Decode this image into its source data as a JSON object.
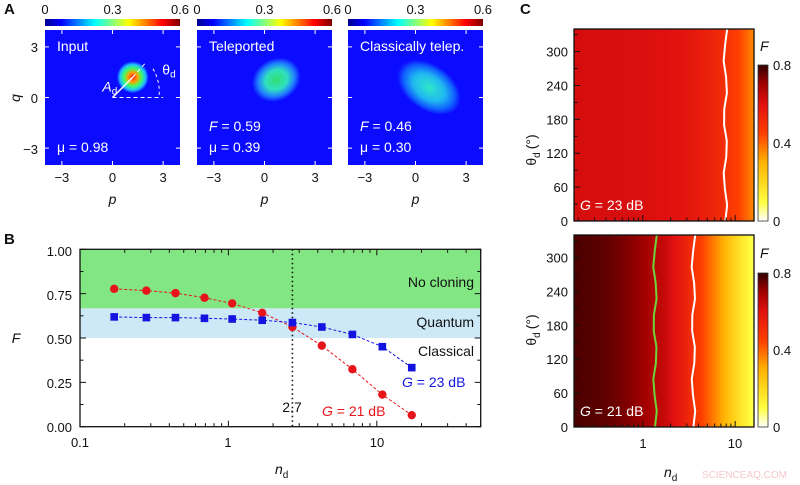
{
  "panel_labels": {
    "a": "A",
    "b": "B",
    "c": "C"
  },
  "watermark": "SCIENCEAQ.COM",
  "chart_data": [
    {
      "panel": "A",
      "type": "heatmap",
      "plots": [
        {
          "title": "Input",
          "annotations": {
            "mu": "μ = 0.98",
            "amplitude_base": "A",
            "amplitude_sub": "d",
            "angle_base": "θ",
            "angle_sub": "d"
          }
        },
        {
          "title": "Teleported",
          "annotations": {
            "fidelity_var": "F",
            "fidelity": "= 0.59",
            "mu": "μ = 0.39"
          }
        },
        {
          "title": "Classically telep.",
          "annotations": {
            "fidelity_var": "F",
            "fidelity": "= 0.46",
            "mu": "μ = 0.30"
          }
        }
      ],
      "colorbar": {
        "ticks": [
          "0",
          "0.3",
          "0.6"
        ],
        "range": [
          0,
          0.6
        ],
        "colormap": "jet"
      },
      "xlabel": "p",
      "ylabel": "q",
      "xticks": [
        "−3",
        "0",
        "3"
      ],
      "yticks": [
        "3",
        "0",
        "−3"
      ],
      "xlim": [
        -4,
        4
      ],
      "ylim": [
        -4,
        4
      ]
    },
    {
      "panel": "B",
      "type": "line",
      "xscale": "log",
      "xlim": [
        0.1,
        50
      ],
      "ylim": [
        0,
        1
      ],
      "xlabel_base": "n",
      "xlabel_sub": "d",
      "ylabel": "F",
      "xticks": [
        "0.1",
        "1",
        "10"
      ],
      "yticks": [
        "0.00",
        "0.25",
        "0.50",
        "0.75",
        "1.00"
      ],
      "regions": [
        {
          "label": "No cloning",
          "range": [
            0.667,
            1.0
          ],
          "color": "#82e682"
        },
        {
          "label": "Quantum",
          "range": [
            0.5,
            0.667
          ],
          "color": "#cde8f6"
        },
        {
          "label": "Classical",
          "range": [
            0.0,
            0.5
          ],
          "color": "#ffffff"
        }
      ],
      "vline": {
        "x": 2.7,
        "label": "2.7"
      },
      "series": [
        {
          "name": "= 21 dB",
          "name_var": "G",
          "color": "#e8141c",
          "marker": "circle",
          "x": [
            0.17,
            0.28,
            0.44,
            0.69,
            1.06,
            1.69,
            2.7,
            4.26,
            6.85,
            10.9,
            17.2
          ],
          "y": [
            0.777,
            0.767,
            0.753,
            0.727,
            0.695,
            0.642,
            0.562,
            0.457,
            0.324,
            0.181,
            0.065
          ]
        },
        {
          "name": "= 23 dB",
          "name_var": "G",
          "color": "#1414e0",
          "marker": "square",
          "x": [
            0.17,
            0.28,
            0.44,
            0.69,
            1.06,
            1.69,
            2.7,
            4.26,
            6.85,
            10.9,
            17.2
          ],
          "y": [
            0.619,
            0.615,
            0.615,
            0.611,
            0.607,
            0.6,
            0.587,
            0.562,
            0.52,
            0.451,
            0.333
          ]
        }
      ]
    },
    {
      "panel": "C",
      "type": "heatmap",
      "xscale": "log",
      "xlim": [
        0.18,
        16
      ],
      "ylim": [
        0,
        340
      ],
      "xlabel_base": "n",
      "xlabel_sub": "d",
      "ylabel_base": "θ",
      "ylabel_sub": "d",
      "ylabel_unit": "(°)",
      "xticks": [
        "1",
        "10"
      ],
      "yticks": [
        "0",
        "60",
        "120",
        "180",
        "240",
        "300"
      ],
      "colorbar": {
        "label": "F",
        "ticks": [
          "0",
          "0.4",
          "0.8"
        ],
        "range": [
          0,
          0.8
        ],
        "colormap": "white-yellow-red-black"
      },
      "plots": [
        {
          "label_var": "G",
          "label": "= 23 dB",
          "contours": [
            {
              "level": 0.5,
              "color": "#ffffff"
            }
          ]
        },
        {
          "label_var": "G",
          "label": "= 21 dB",
          "contours": [
            {
              "level": 0.667,
              "color": "#6fd43a"
            },
            {
              "level": 0.5,
              "color": "#ffffff"
            }
          ]
        }
      ]
    }
  ]
}
